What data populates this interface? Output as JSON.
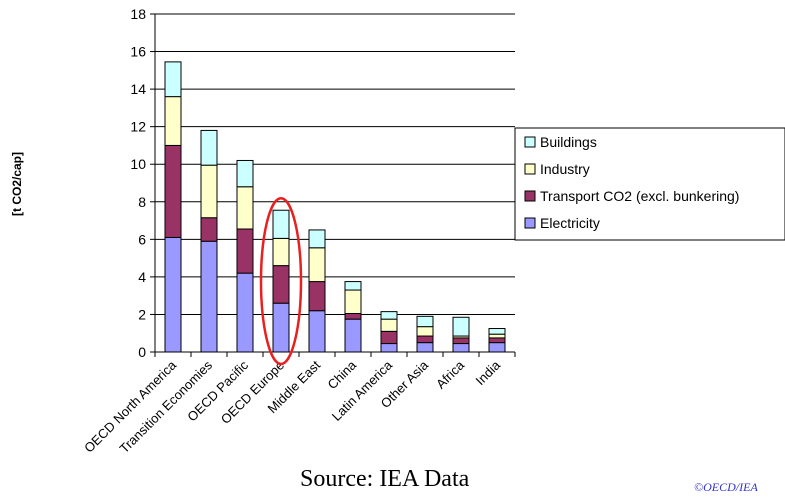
{
  "chart_data": {
    "type": "bar",
    "stacked": true,
    "ylabel": "[t CO2/cap]",
    "ylim": [
      0,
      18
    ],
    "yticks": [
      0,
      2,
      4,
      6,
      8,
      10,
      12,
      14,
      16,
      18
    ],
    "grid": true,
    "legend_position": "right",
    "highlighted_category": "OECD Europe",
    "highlight_color": "#e8201f",
    "categories": [
      "OECD North America",
      "Transition Economies",
      "OECD Pacific",
      "OECD Europe",
      "Middle East",
      "China",
      "Latin America",
      "Other Asia",
      "Africa",
      "India"
    ],
    "series": [
      {
        "name": "Electricity",
        "color": "#9999ff",
        "values": [
          6.1,
          5.9,
          4.2,
          2.6,
          2.2,
          1.75,
          0.45,
          0.5,
          0.45,
          0.5
        ]
      },
      {
        "name": "Transport CO2 (excl. bunkering)",
        "color": "#993366",
        "values": [
          4.9,
          1.25,
          2.35,
          2.0,
          1.55,
          0.3,
          0.65,
          0.35,
          0.3,
          0.25
        ]
      },
      {
        "name": "Industry",
        "color": "#ffffcc",
        "values": [
          2.6,
          2.8,
          2.25,
          1.45,
          1.8,
          1.25,
          0.65,
          0.5,
          0.1,
          0.2
        ]
      },
      {
        "name": "Buildings",
        "color": "#ccffff",
        "values": [
          1.85,
          1.85,
          1.4,
          1.5,
          0.95,
          0.45,
          0.4,
          0.55,
          1.0,
          0.3
        ]
      }
    ]
  },
  "footer": {
    "source": "Source: IEA Data",
    "copyright": "©OECD/IEA"
  }
}
